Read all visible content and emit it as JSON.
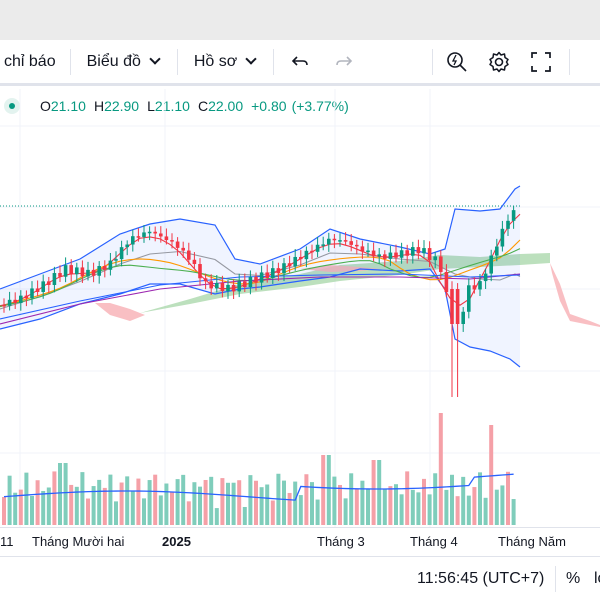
{
  "toolbar": {
    "indicators_label": "chỉ báo",
    "chart_type_label": "Biểu đồ",
    "profile_label": "Hồ sơ"
  },
  "legend": {
    "open_label": "O",
    "open": "21.10",
    "high_label": "H",
    "high": "22.90",
    "low_label": "L",
    "low": "21.10",
    "close_label": "C",
    "close": "22.00",
    "change": "+0.80",
    "change_pct": "(+3.77%)"
  },
  "time_axis": {
    "labels": [
      "11",
      "Tháng Mười hai",
      "2025",
      "Tháng 3",
      "Tháng 4",
      "Tháng Năm"
    ]
  },
  "status_bar": {
    "clock": "11:56:45 (UTC+7)",
    "percent_label": "%",
    "log_label": "lo"
  },
  "colors": {
    "up": "#089981",
    "down": "#f23645",
    "bollinger": "#2962ff",
    "volume_up": "#7fcdbb",
    "volume_down": "#f5a0a7",
    "cloud_green": "#a5d6a7",
    "cloud_red": "#f8b4b9"
  }
}
